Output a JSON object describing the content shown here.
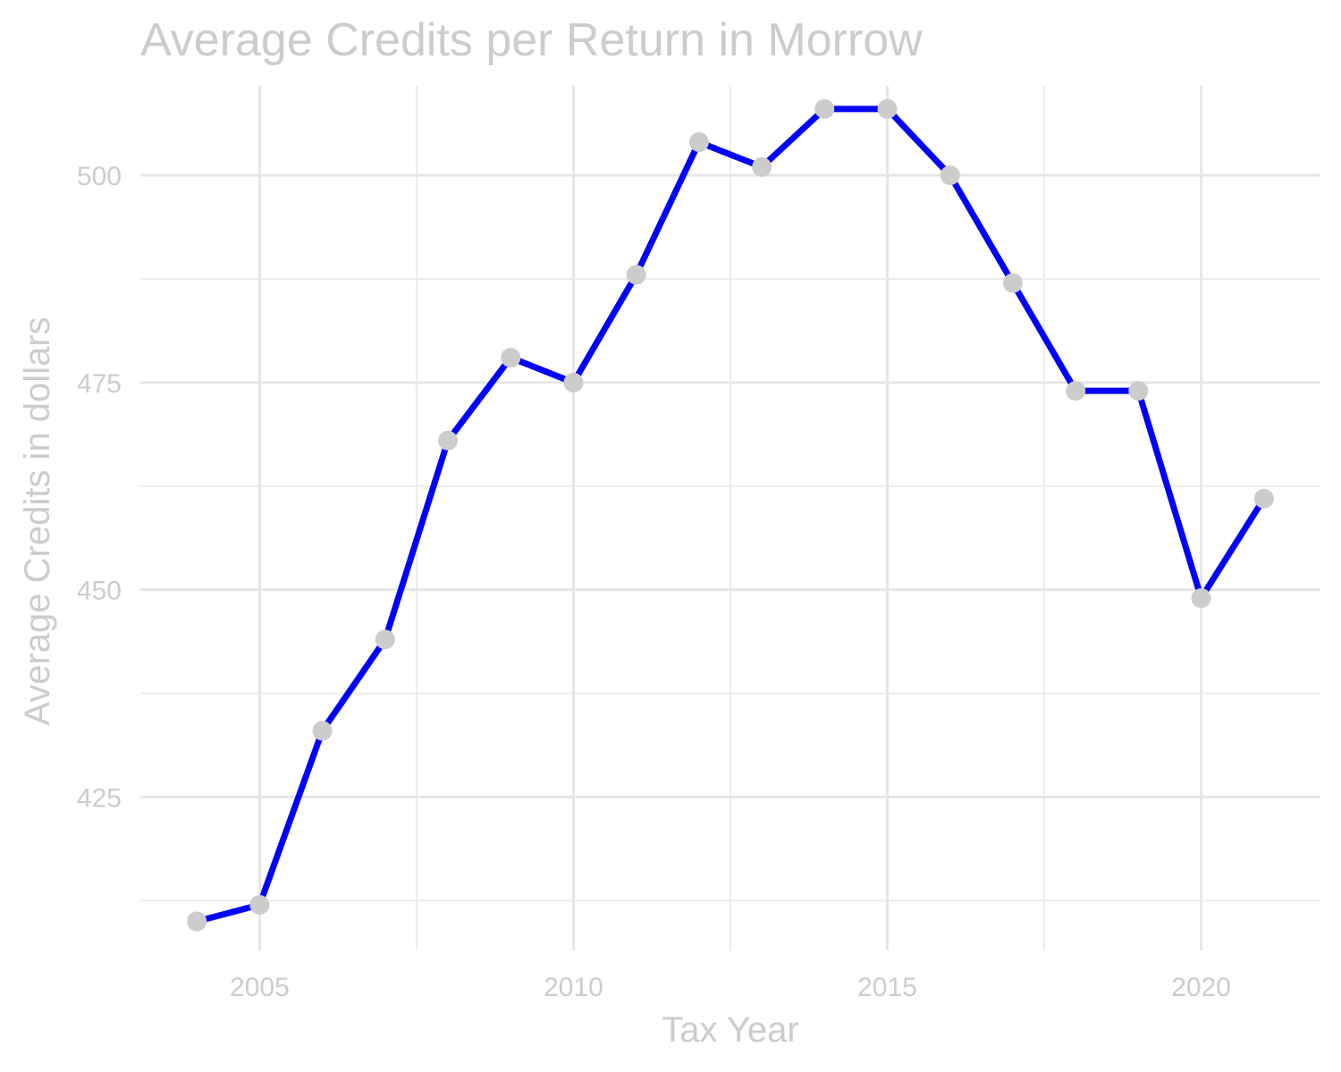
{
  "chart_data": {
    "type": "line",
    "title": "Average Credits per Return in Morrow",
    "xlabel": "Tax Year",
    "ylabel": "Average Credits in dollars",
    "x": [
      2004,
      2005,
      2006,
      2007,
      2008,
      2009,
      2010,
      2011,
      2012,
      2013,
      2014,
      2015,
      2016,
      2017,
      2018,
      2019,
      2020,
      2021
    ],
    "series": [
      {
        "values": [
          410,
          412,
          433,
          444,
          468,
          478,
          475,
          488,
          504,
          501,
          508,
          508,
          500,
          487,
          474,
          474,
          449,
          461
        ]
      }
    ],
    "xlim": [
      2003.1,
      2021.9
    ],
    "ylim": [
      406.5,
      512.3
    ],
    "x_ticks": [
      2005,
      2010,
      2015,
      2020
    ],
    "y_ticks": [
      425,
      450,
      475,
      500
    ],
    "grid": true,
    "line_color": "#0000ff",
    "point_color": "#cccccc"
  }
}
